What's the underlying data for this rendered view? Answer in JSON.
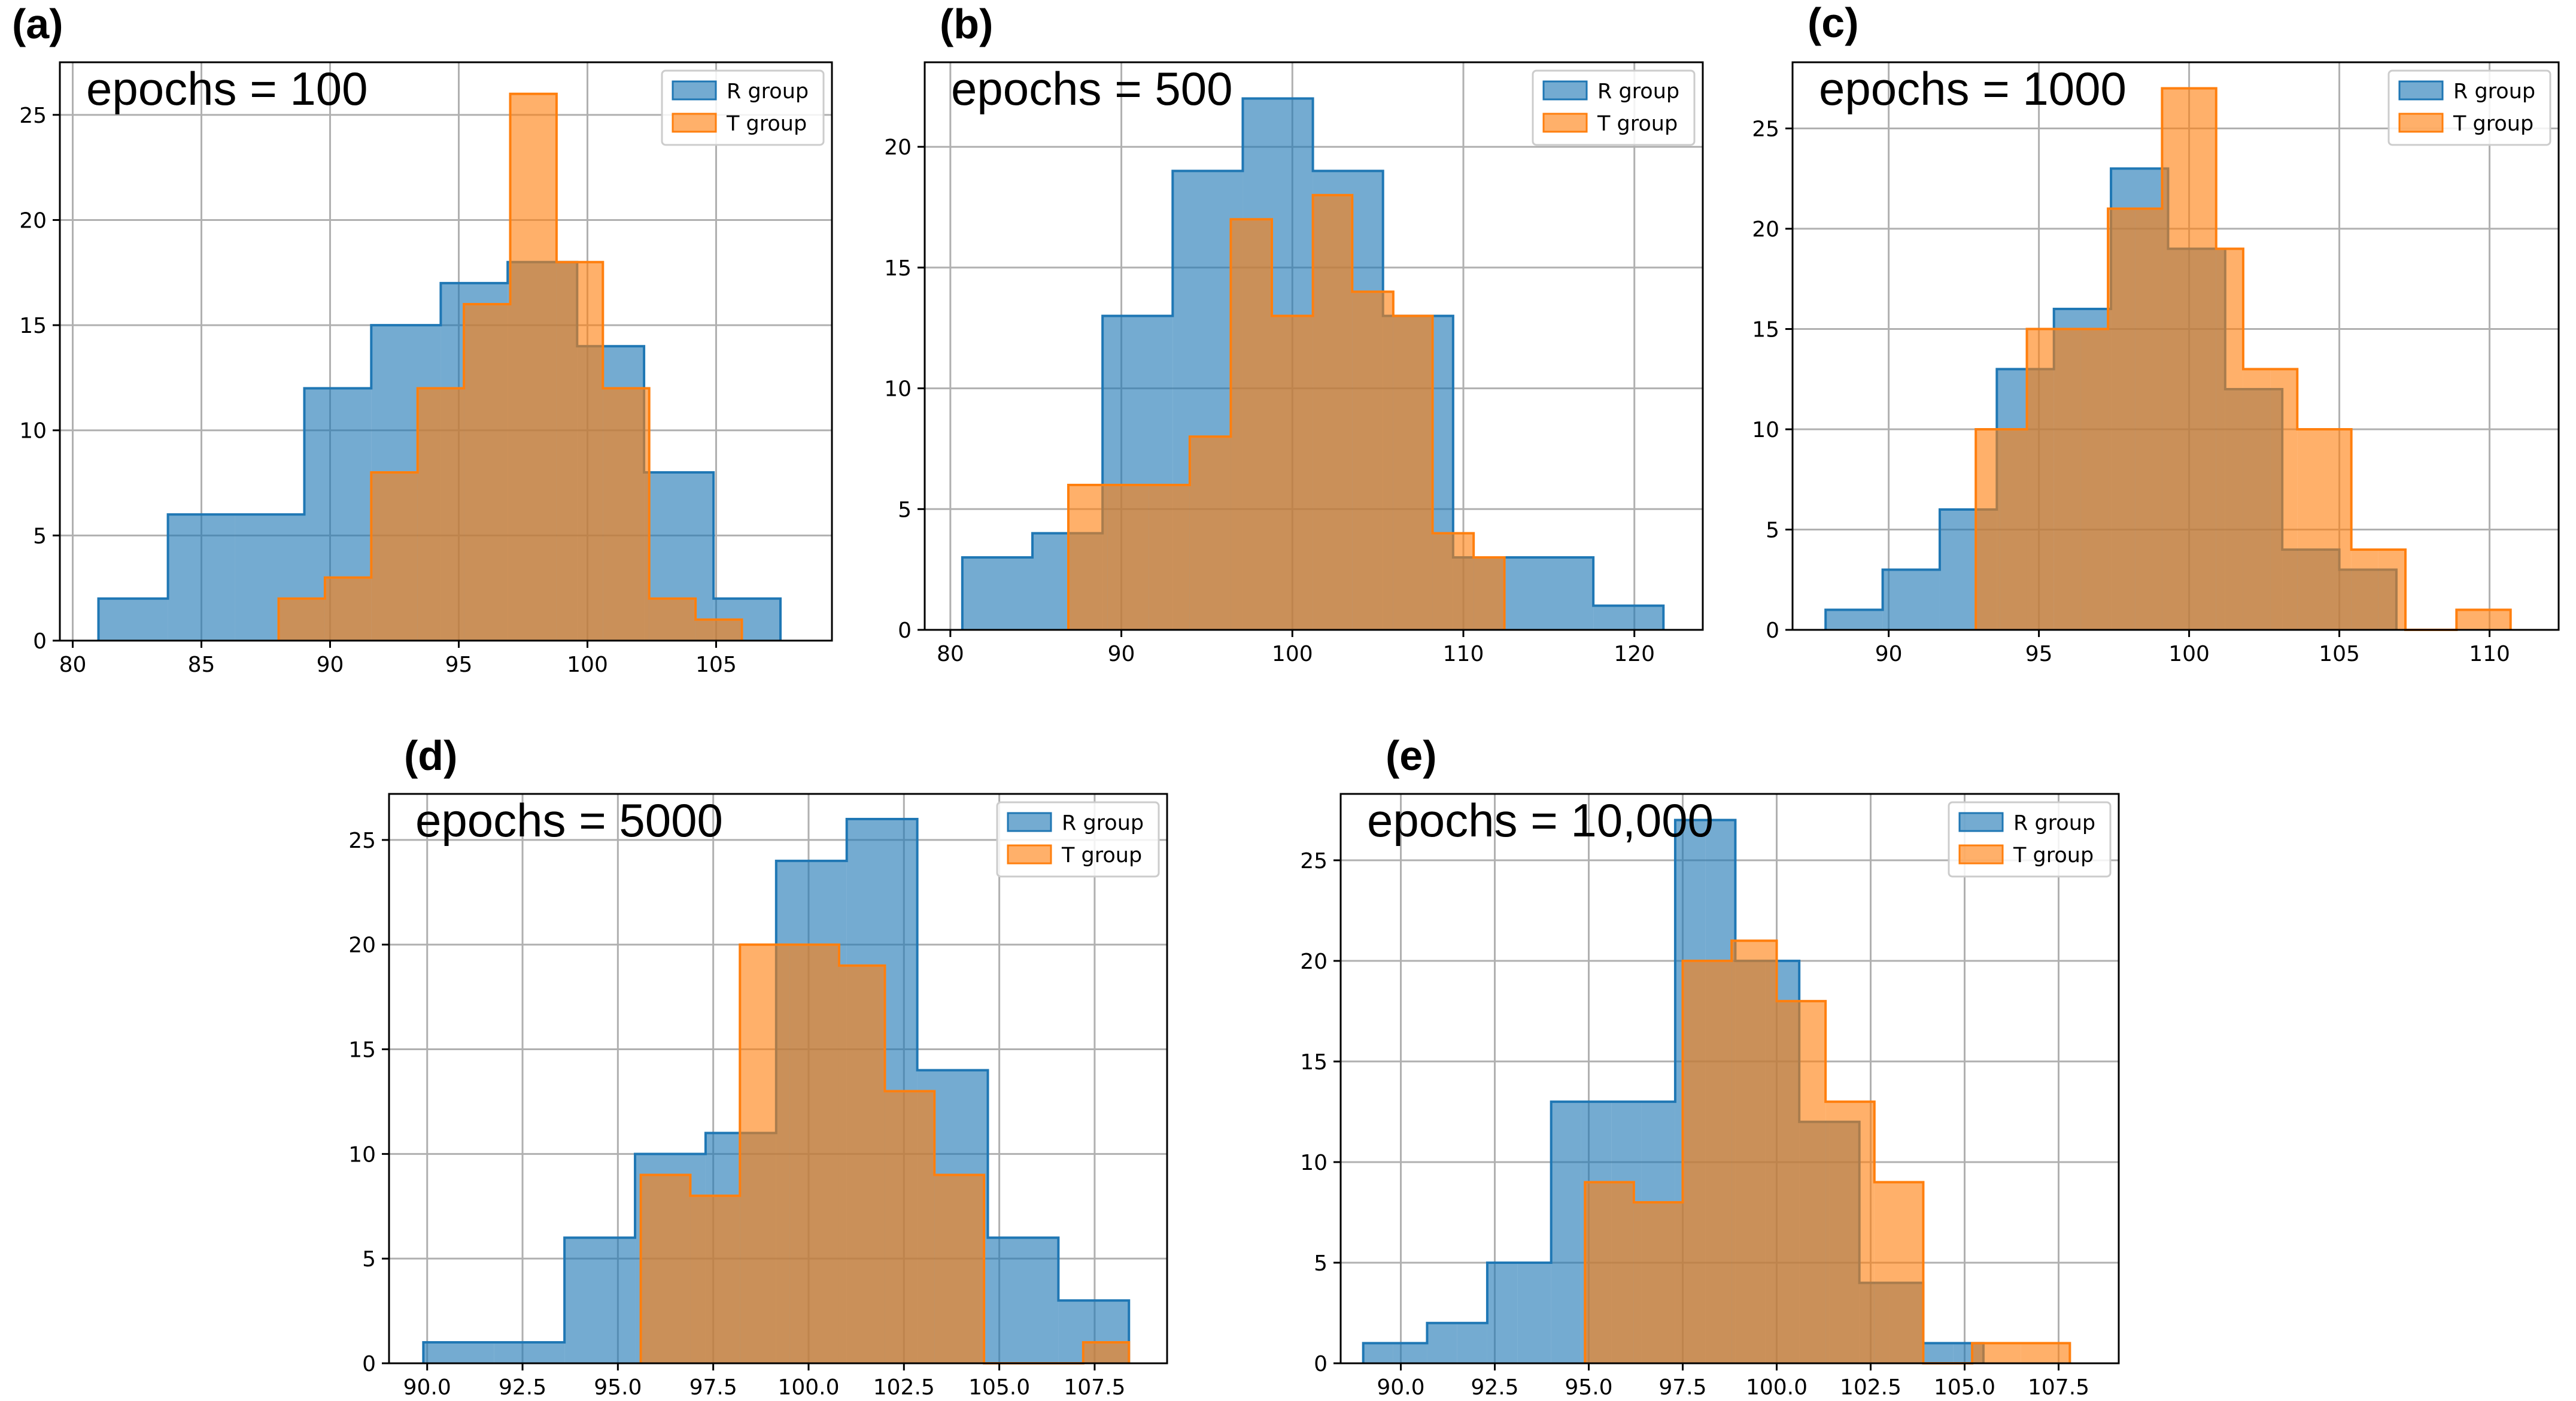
{
  "colors": {
    "r_fill": "#1f77b4",
    "r_edge": "#1f77b4",
    "t_fill": "#ff7f0e",
    "t_edge": "#ff7f0e",
    "grid": "#b0b0b0",
    "axis": "#000000"
  },
  "chart_data": [
    {
      "type": "bar",
      "label": "(a)",
      "annotation": "epochs = 100",
      "legend": [
        "R group",
        "T group"
      ],
      "legend_position": "top-right",
      "grid": true,
      "xlim": [
        79.5,
        109.5
      ],
      "ylim": [
        0,
        27.5
      ],
      "xticks": [
        80,
        85,
        90,
        95,
        100,
        105
      ],
      "xtick_labels": [
        "80",
        "85",
        "90",
        "95",
        "100",
        "105"
      ],
      "yticks": [
        0,
        5,
        10,
        15,
        20,
        25
      ],
      "ytick_labels": [
        "0",
        "5",
        "10",
        "15",
        "20",
        "25"
      ],
      "series": [
        {
          "name": "R group",
          "edges": [
            81.0,
            83.7,
            86.3,
            89.0,
            91.6,
            94.3,
            96.9,
            99.6,
            102.2,
            104.9,
            107.5
          ],
          "counts": [
            2,
            6,
            6,
            12,
            15,
            17,
            18,
            14,
            8,
            2
          ]
        },
        {
          "name": "T group",
          "edges": [
            88.0,
            89.8,
            91.6,
            93.4,
            95.2,
            97.0,
            98.8,
            100.6,
            102.4,
            104.2,
            106.0
          ],
          "counts": [
            2,
            3,
            8,
            12,
            16,
            26,
            18,
            12,
            2,
            1
          ]
        }
      ]
    },
    {
      "type": "bar",
      "label": "(b)",
      "annotation": "epochs = 500",
      "legend": [
        "R group",
        "T group"
      ],
      "legend_position": "top-right",
      "grid": true,
      "xlim": [
        78.5,
        124
      ],
      "ylim": [
        0,
        23.5
      ],
      "xticks": [
        80,
        90,
        100,
        110,
        120
      ],
      "xtick_labels": [
        "80",
        "90",
        "100",
        "110",
        "120"
      ],
      "yticks": [
        0,
        5,
        10,
        15,
        20
      ],
      "ytick_labels": [
        "0",
        "5",
        "10",
        "15",
        "20"
      ],
      "series": [
        {
          "name": "R group",
          "edges": [
            80.7,
            84.8,
            88.9,
            93.0,
            97.1,
            101.2,
            105.3,
            109.4,
            113.5,
            117.6,
            121.7
          ],
          "counts": [
            3,
            4,
            13,
            19,
            22,
            19,
            13,
            3,
            3,
            1
          ]
        },
        {
          "name": "T group",
          "edges": [
            86.9,
            89.2,
            91.6,
            94.0,
            96.4,
            98.8,
            101.2,
            103.5,
            105.9,
            108.2,
            110.6,
            112.4
          ],
          "counts": [
            6,
            6,
            6,
            8,
            17,
            13,
            18,
            14,
            13,
            4,
            3
          ]
        }
      ]
    },
    {
      "type": "bar",
      "label": "(c)",
      "annotation": "epochs = 1000",
      "legend": [
        "R group",
        "T group"
      ],
      "legend_position": "top-right",
      "grid": true,
      "xlim": [
        86.8,
        112.3
      ],
      "ylim": [
        0,
        28.3
      ],
      "xticks": [
        90,
        95,
        100,
        105,
        110
      ],
      "xtick_labels": [
        "90",
        "95",
        "100",
        "105",
        "110"
      ],
      "yticks": [
        0,
        5,
        10,
        15,
        20,
        25
      ],
      "ytick_labels": [
        "0",
        "5",
        "10",
        "15",
        "20",
        "25"
      ],
      "series": [
        {
          "name": "R group",
          "edges": [
            87.9,
            89.8,
            91.7,
            93.6,
            95.5,
            97.4,
            99.3,
            101.2,
            103.1,
            105.0,
            106.9
          ],
          "counts": [
            1,
            3,
            6,
            13,
            16,
            23,
            19,
            12,
            4,
            3
          ]
        },
        {
          "name": "T group",
          "edges": [
            92.9,
            93.7,
            94.6,
            95.5,
            96.4,
            97.3,
            98.2,
            99.1,
            100.0,
            100.9,
            101.8,
            102.7,
            103.6,
            104.5,
            105.4,
            106.3,
            107.2,
            108.1,
            108.9,
            109.8,
            110.7
          ],
          "counts": [
            10,
            10,
            15,
            15,
            15,
            21,
            21,
            27,
            27,
            19,
            13,
            13,
            10,
            10,
            4,
            4,
            0,
            0,
            1,
            1
          ]
        }
      ]
    },
    {
      "type": "bar",
      "label": "(d)",
      "annotation": "epochs = 5000",
      "legend": [
        "R group",
        "T group"
      ],
      "legend_position": "top-right",
      "grid": true,
      "xlim": [
        89.0,
        109.4
      ],
      "ylim": [
        0,
        27.2
      ],
      "xticks": [
        90.0,
        92.5,
        95.0,
        97.5,
        100.0,
        102.5,
        105.0,
        107.5
      ],
      "xtick_labels": [
        "90.0",
        "92.5",
        "95.0",
        "97.5",
        "100.0",
        "102.5",
        "105.0",
        "107.5"
      ],
      "yticks": [
        0,
        5,
        10,
        15,
        20,
        25
      ],
      "ytick_labels": [
        "0",
        "5",
        "10",
        "15",
        "20",
        "25"
      ],
      "series": [
        {
          "name": "R group",
          "edges": [
            89.9,
            91.75,
            93.6,
            95.45,
            97.3,
            99.15,
            101.0,
            102.85,
            104.7,
            106.55,
            108.4
          ],
          "counts": [
            1,
            1,
            6,
            10,
            11,
            24,
            26,
            14,
            6,
            3
          ]
        },
        {
          "name": "T group",
          "edges": [
            95.6,
            96.9,
            98.2,
            99.5,
            100.8,
            102.0,
            103.3,
            104.6,
            105.9,
            107.2,
            108.4
          ],
          "counts": [
            9,
            8,
            20,
            20,
            19,
            13,
            9,
            0,
            0,
            1
          ]
        }
      ]
    },
    {
      "type": "bar",
      "label": "(e)",
      "annotation": "epochs = 10,000",
      "legend": [
        "R group",
        "T group"
      ],
      "legend_position": "top-right",
      "grid": true,
      "xlim": [
        88.4,
        109.1
      ],
      "ylim": [
        0,
        28.3
      ],
      "xticks": [
        90.0,
        92.5,
        95.0,
        97.5,
        100.0,
        102.5,
        105.0,
        107.5
      ],
      "xtick_labels": [
        "90.0",
        "92.5",
        "95.0",
        "97.5",
        "100.0",
        "102.5",
        "105.0",
        "107.5"
      ],
      "yticks": [
        0,
        5,
        10,
        15,
        20,
        25
      ],
      "ytick_labels": [
        "0",
        "5",
        "10",
        "15",
        "20",
        "25"
      ],
      "series": [
        {
          "name": "R group",
          "edges": [
            89.0,
            89.8,
            90.7,
            91.5,
            92.3,
            93.1,
            94.0,
            94.8,
            95.6,
            96.4,
            97.3,
            98.1,
            98.9,
            99.7,
            100.6,
            101.4,
            102.2,
            103.0,
            103.9,
            104.7,
            105.5
          ],
          "counts": [
            1,
            1,
            2,
            2,
            5,
            5,
            13,
            13,
            13,
            13,
            27,
            27,
            20,
            20,
            12,
            12,
            4,
            4,
            1,
            1
          ]
        },
        {
          "name": "T group",
          "edges": [
            94.9,
            96.2,
            97.5,
            98.8,
            100.0,
            101.3,
            102.6,
            103.9,
            105.2,
            106.5,
            107.8
          ],
          "counts": [
            9,
            8,
            20,
            21,
            18,
            13,
            9,
            0,
            1,
            1
          ]
        }
      ]
    }
  ]
}
